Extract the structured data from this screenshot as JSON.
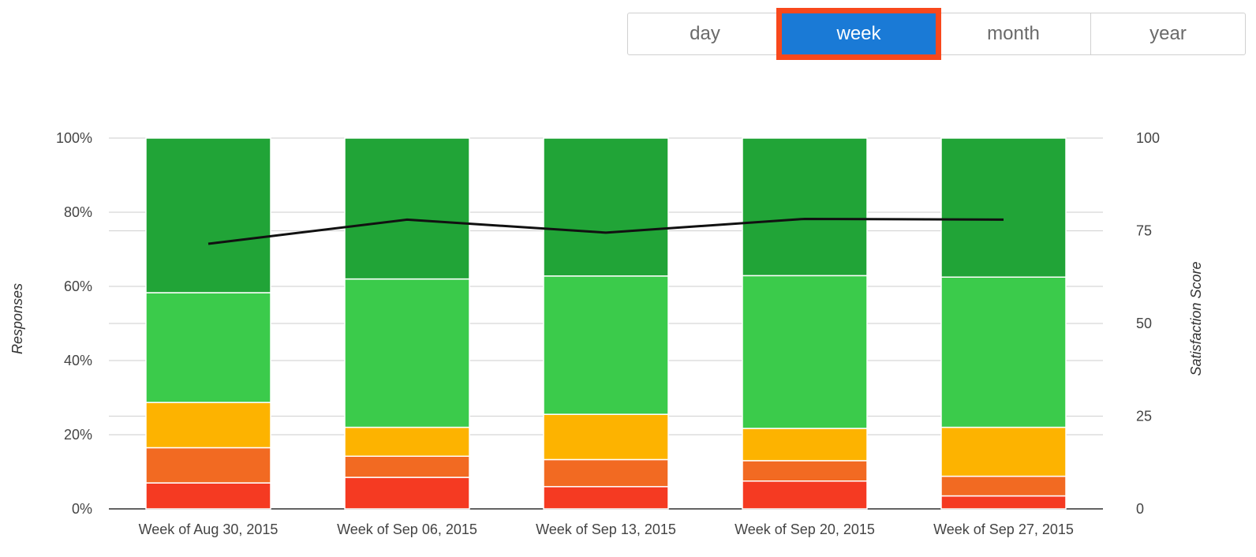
{
  "range_selector": {
    "options": [
      {
        "id": "day",
        "label": "day",
        "active": false
      },
      {
        "id": "week",
        "label": "week",
        "active": true
      },
      {
        "id": "month",
        "label": "month",
        "active": false
      },
      {
        "id": "year",
        "label": "year",
        "active": false
      }
    ],
    "active_color": "#1a7ad6",
    "highlight_color": "#f8481c"
  },
  "chart_data": {
    "type": "bar",
    "stacked": true,
    "categories": [
      "Week of Aug 30, 2015",
      "Week of Sep 06, 2015",
      "Week of Sep 13, 2015",
      "Week of Sep 20, 2015",
      "Week of Sep 27, 2015"
    ],
    "series": [
      {
        "color": "#f53a22",
        "values": [
          7,
          8.5,
          6,
          7.5,
          3.5
        ]
      },
      {
        "color": "#f26a22",
        "values": [
          9.5,
          5.7,
          7.3,
          5.5,
          5.3
        ]
      },
      {
        "color": "#fdb300",
        "values": [
          12.2,
          7.8,
          12.2,
          8.7,
          13.2
        ]
      },
      {
        "color": "#3bcb4b",
        "values": [
          29.6,
          40,
          37.3,
          41.2,
          40.5
        ]
      },
      {
        "color": "#21a437",
        "values": [
          41.7,
          38,
          37.2,
          37.1,
          37.5
        ]
      }
    ],
    "line": {
      "color": "#111111",
      "axis": "right",
      "values": [
        71.5,
        78,
        74.5,
        78.2,
        78
      ]
    },
    "ylabel": "Responses",
    "ylabel_right": "Satisfaction Score",
    "ylim": [
      0,
      100
    ],
    "ylim_right": [
      0,
      100
    ],
    "yticks": [
      "0%",
      "20%",
      "40%",
      "60%",
      "80%",
      "100%"
    ],
    "yticks_right": [
      "0",
      "25",
      "50",
      "75",
      "100"
    ],
    "grid": true
  }
}
